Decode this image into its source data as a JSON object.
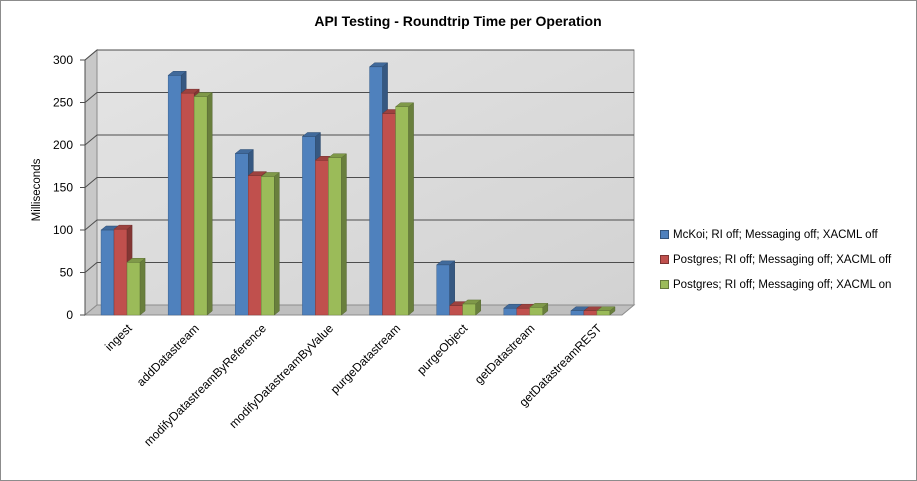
{
  "chart_data": {
    "type": "bar",
    "title": "API Testing - Roundtrip Time per Operation",
    "xlabel": "",
    "ylabel": "Milliseconds",
    "ylim": [
      0,
      300
    ],
    "yticks": [
      0,
      50,
      100,
      150,
      200,
      250,
      300
    ],
    "grid": true,
    "legend_position": "right",
    "categories": [
      "ingest",
      "addDatastream",
      "modifyDatastreamByReference",
      "modifyDatastreamByValue",
      "purgeDatastream",
      "purgeObject",
      "getDatastream",
      "getDatastreamREST"
    ],
    "series": [
      {
        "name": "McKoi; RI off; Messaging off; XACML off",
        "color": "#4f81bd",
        "values": [
          100,
          282,
          190,
          210,
          292,
          59,
          8,
          5
        ]
      },
      {
        "name": "Postgres; RI off; Messaging off; XACML off",
        "color": "#c0504d",
        "values": [
          101,
          261,
          164,
          182,
          237,
          11,
          8,
          5
        ]
      },
      {
        "name": "Postgres; RI off; Messaging off; XACML on",
        "color": "#9bbb59",
        "values": [
          62,
          257,
          163,
          185,
          245,
          13,
          9,
          5
        ]
      }
    ]
  }
}
